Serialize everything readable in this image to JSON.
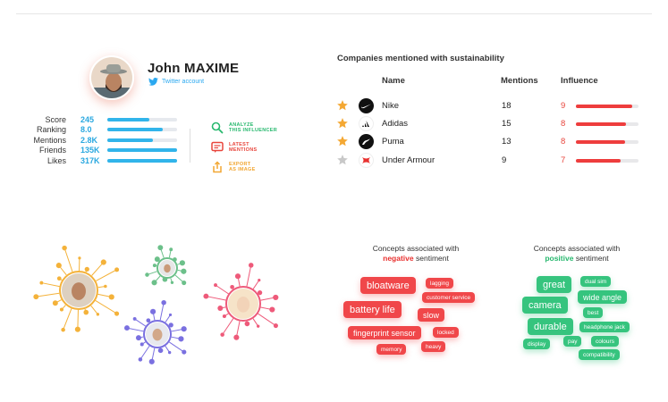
{
  "profile": {
    "name": "John MAXIME",
    "account_label": "Twitter account",
    "stats": [
      {
        "label": "Score",
        "value": "245",
        "level": 0.6
      },
      {
        "label": "Ranking",
        "value": "8.0",
        "level": 0.8
      },
      {
        "label": "Mentions",
        "value": "2.8K",
        "level": 0.66
      },
      {
        "label": "Friends",
        "value": "135K",
        "level": 1.0
      },
      {
        "label": "Likes",
        "value": "317K",
        "level": 1.0
      }
    ],
    "actions": [
      {
        "line1": "ANALYZE",
        "line2": "THIS INFLUENCER",
        "color": "#27b86e"
      },
      {
        "line1": "LATEST",
        "line2": "MENTIONS",
        "color": "#e8453c"
      },
      {
        "line1": "EXPORT",
        "line2": "AS IMAGE",
        "color": "#f2a733"
      }
    ]
  },
  "companies": {
    "title": "Companies mentioned with sustainability",
    "columns": {
      "name": "Name",
      "mentions": "Mentions",
      "influence": "Influence"
    },
    "rows": [
      {
        "name": "Nike",
        "mentions": "18",
        "influence": "9",
        "influence_level": 0.9,
        "starred": true,
        "logo": "nike-logo"
      },
      {
        "name": "Adidas",
        "mentions": "15",
        "influence": "8",
        "influence_level": 0.8,
        "starred": true,
        "logo": "adidas-logo"
      },
      {
        "name": "Puma",
        "mentions": "13",
        "influence": "8",
        "influence_level": 0.78,
        "starred": true,
        "logo": "puma-logo"
      },
      {
        "name": "Under Armour",
        "mentions": "9",
        "influence": "7",
        "influence_level": 0.72,
        "starred": false,
        "logo": "under-armour-logo"
      }
    ],
    "colors": {
      "star_on": "#f4a833",
      "star_off": "#c8c8c8",
      "influence": "#ee3d3d"
    }
  },
  "concepts": {
    "negative": {
      "title_line1": "Concepts associated with",
      "title_emph": "negative",
      "title_rest": "sentiment",
      "tags": [
        "bloatware",
        "lagging",
        "customer service",
        "battery life",
        "slow",
        "fingerprint sensor",
        "locked",
        "memory",
        "heavy"
      ]
    },
    "positive": {
      "title_line1": "Concepts associated with",
      "title_emph": "positive",
      "title_rest": "sentiment",
      "tags": [
        "great",
        "dual sim",
        "camera",
        "wide angle",
        "best",
        "durable",
        "headphone jack",
        "display",
        "pay",
        "colours",
        "compatibility"
      ]
    }
  }
}
